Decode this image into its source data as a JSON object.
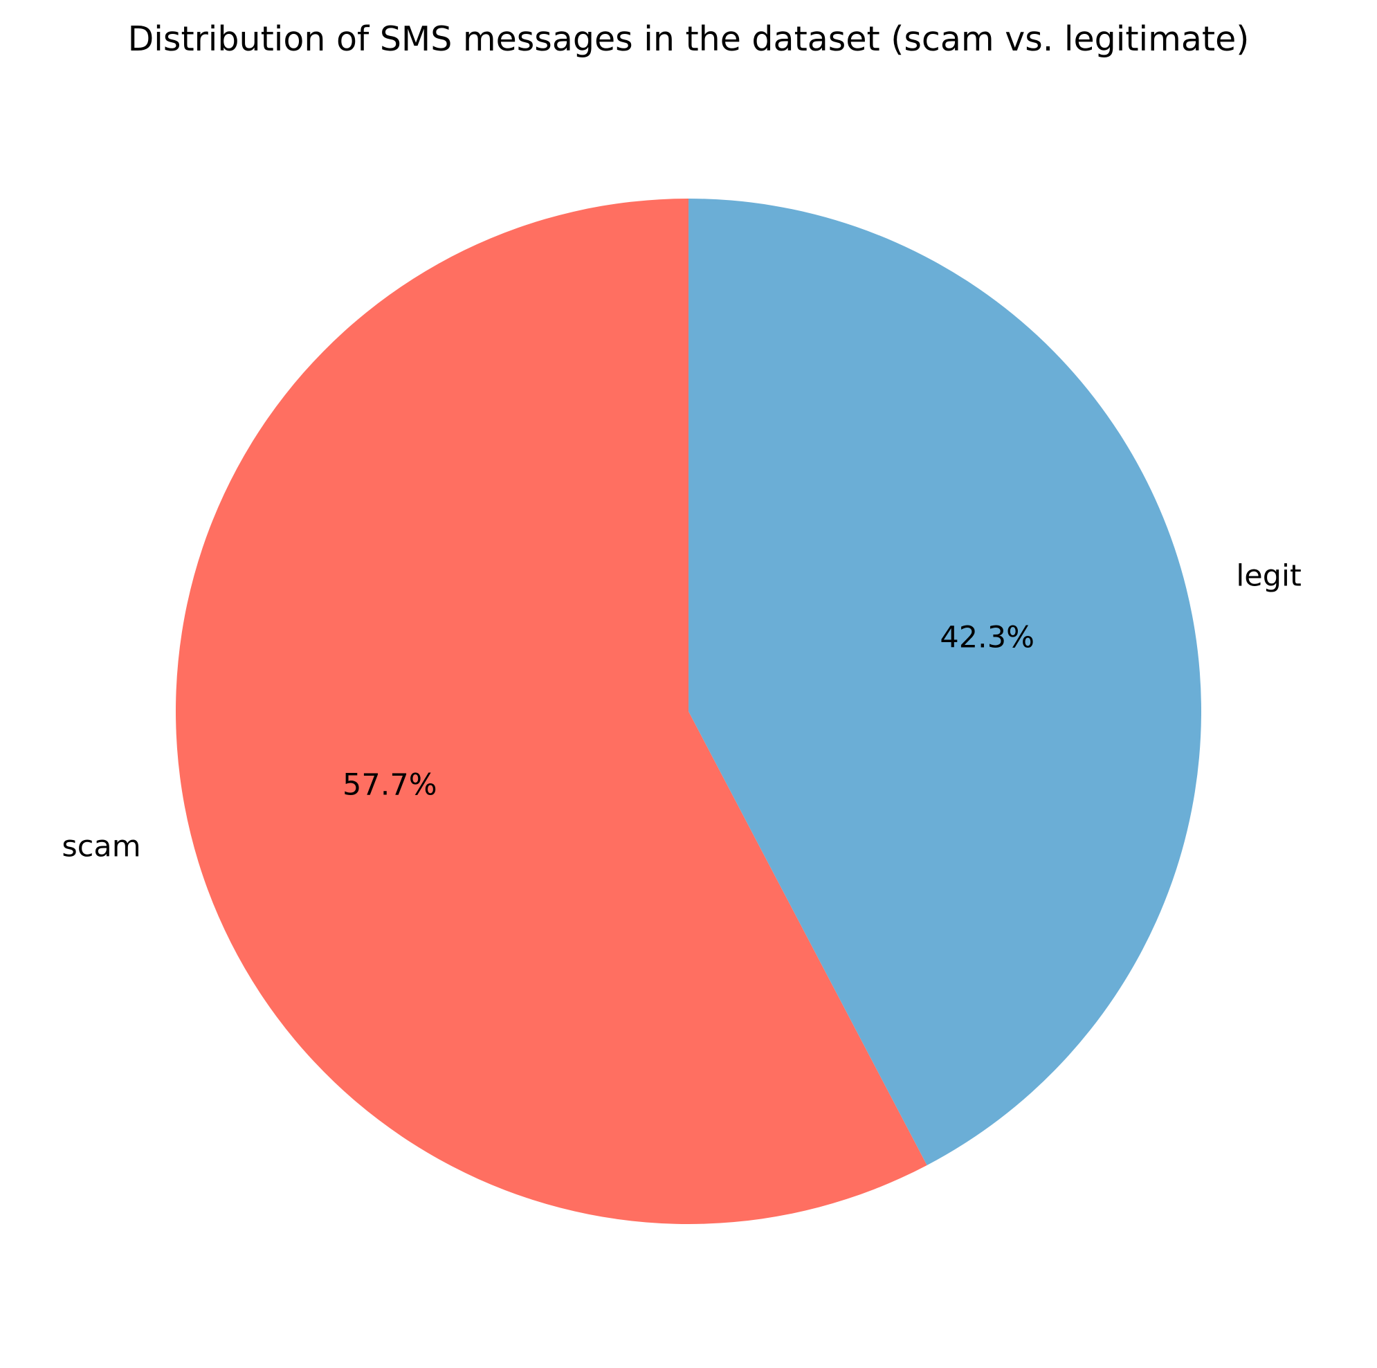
{
  "chart_data": {
    "type": "pie",
    "title": "Distribution of SMS messages in the dataset (scam vs. legitimate)",
    "slices": [
      {
        "label": "scam",
        "percent": 57.7,
        "percent_label": "57.7%",
        "color": "#FF6F61"
      },
      {
        "label": "legit",
        "percent": 42.3,
        "percent_label": "42.3%",
        "color": "#6BAED6"
      }
    ],
    "start_angle_deg": 90,
    "direction": "counterclockwise"
  }
}
